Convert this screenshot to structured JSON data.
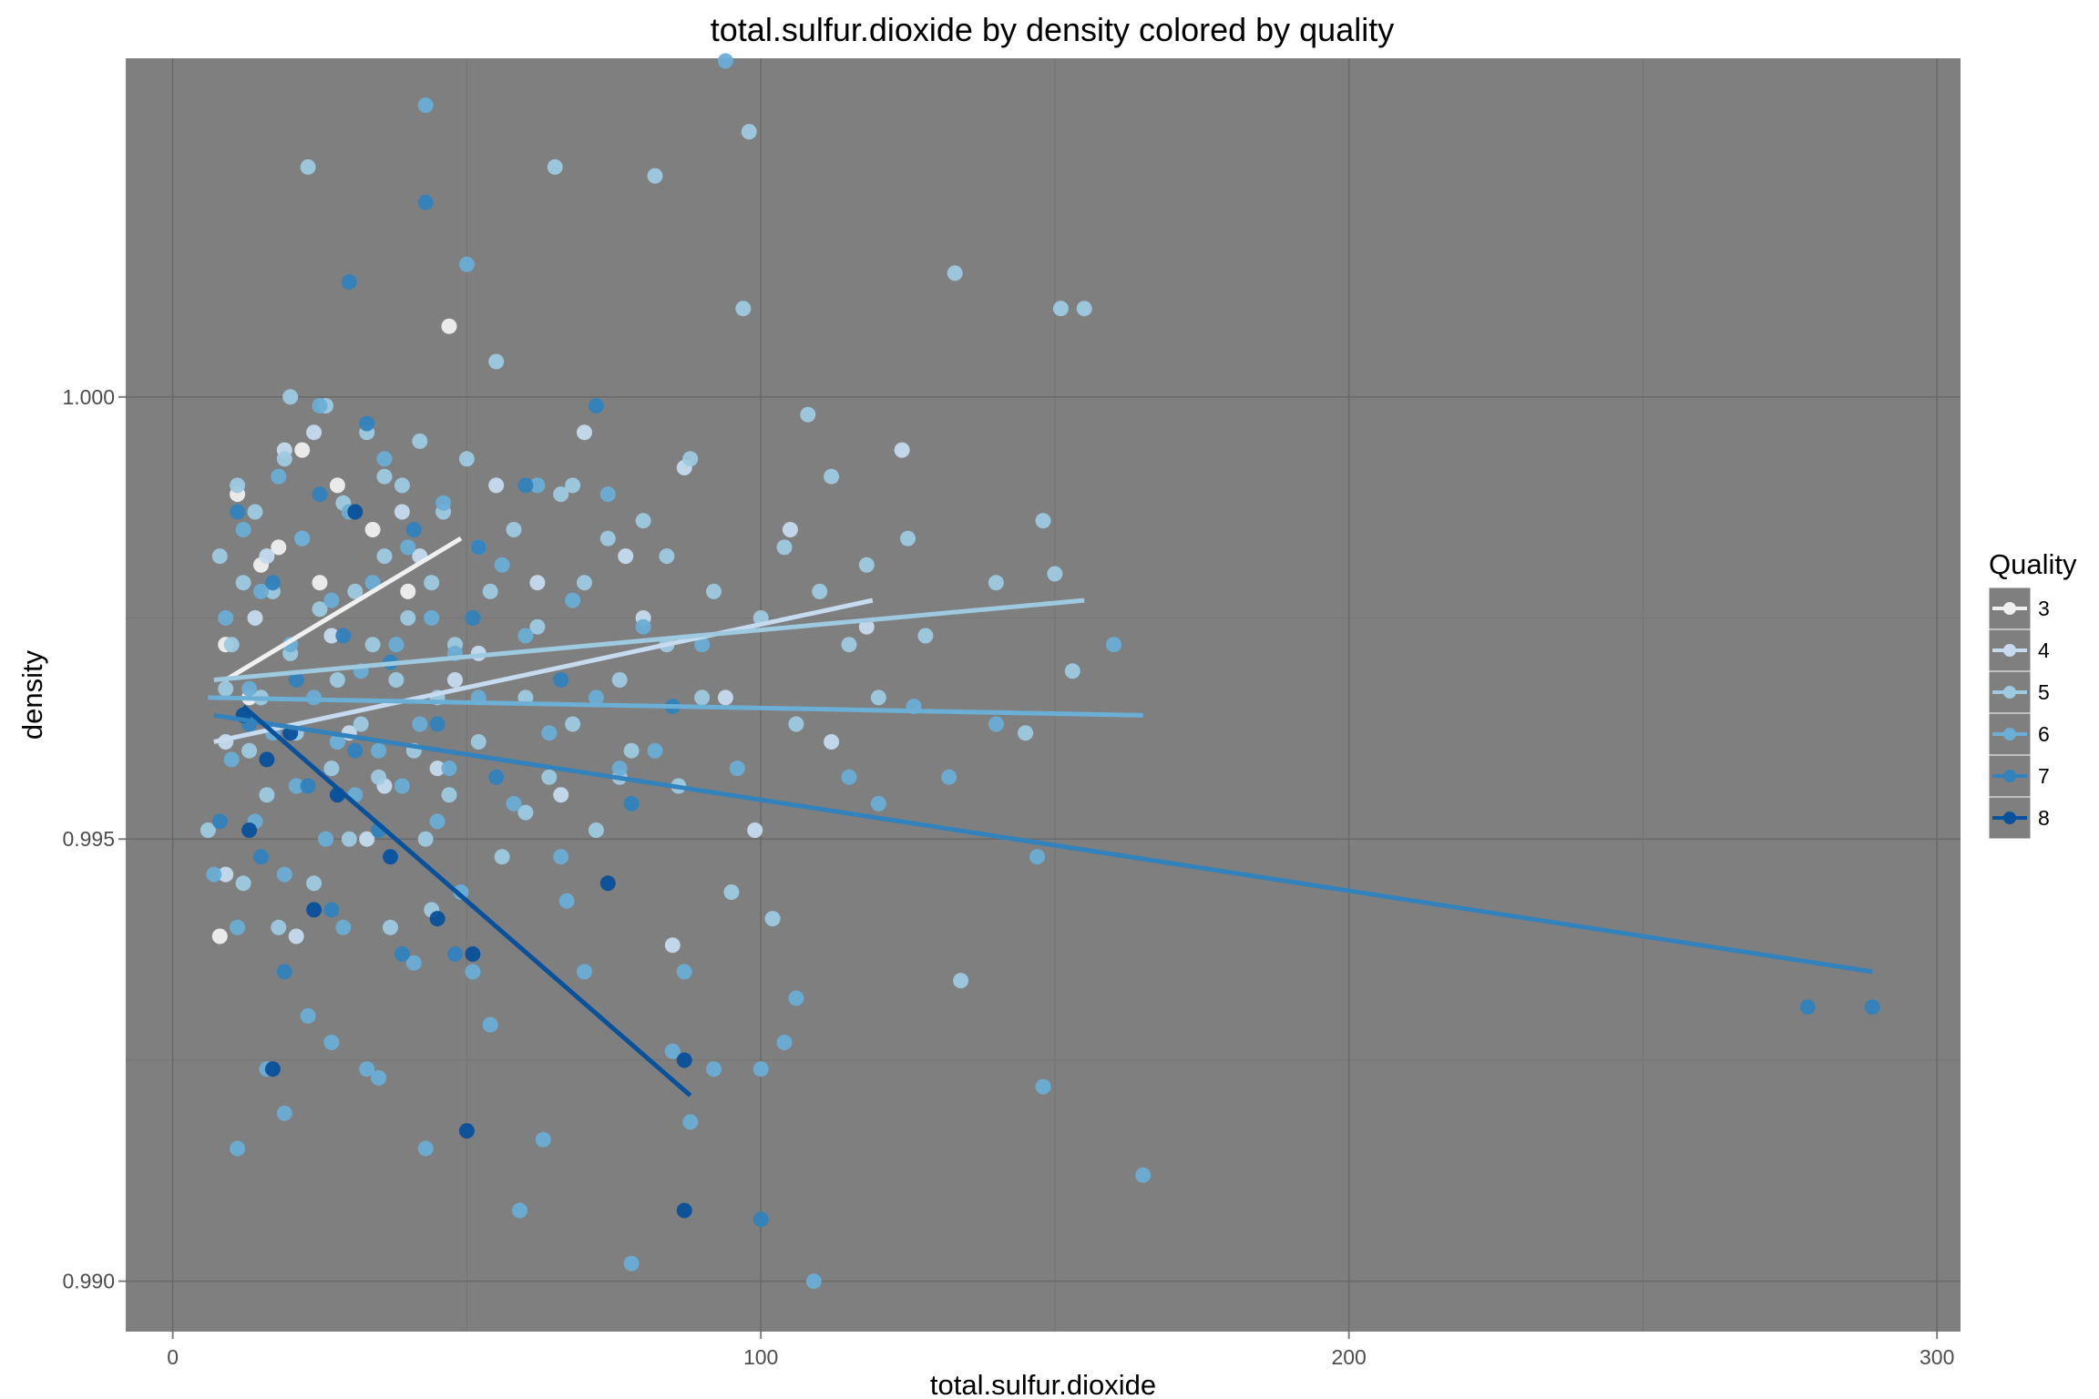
{
  "chart_data": {
    "type": "scatter",
    "title": "total.sulfur.dioxide by density colored by quality",
    "xlabel": "total.sulfur.dioxide",
    "ylabel": "density",
    "xlim": [
      -8,
      304
    ],
    "ylim": [
      0.98943,
      1.00383
    ],
    "x_ticks": [
      0,
      100,
      200,
      300
    ],
    "x_tick_labels": [
      "0",
      "100",
      "200",
      "300"
    ],
    "y_ticks": [
      0.99,
      0.995,
      1.0
    ],
    "y_tick_labels": [
      "0.990",
      "0.995",
      "1.000"
    ],
    "grid": true,
    "legend": {
      "title": "Quality",
      "position": "right"
    },
    "background": "#7f7f7f",
    "series": [
      {
        "name": "3",
        "color": "#f0f0f0",
        "points": [
          [
            11,
            0.9989
          ],
          [
            15,
            0.9981
          ],
          [
            18,
            0.9983
          ],
          [
            22,
            0.9994
          ],
          [
            28,
            0.999
          ],
          [
            34,
            0.9985
          ],
          [
            47,
            1.0008
          ],
          [
            9,
            0.9972
          ],
          [
            13,
            0.9966
          ],
          [
            8,
            0.9939
          ],
          [
            25,
            0.9979
          ],
          [
            40,
            0.9978
          ]
        ],
        "fit": [
          [
            9,
            0.9968
          ],
          [
            49,
            0.9984
          ]
        ]
      },
      {
        "name": "4",
        "color": "#c6dbef",
        "points": [
          [
            9,
            0.9946
          ],
          [
            14,
            0.9975
          ],
          [
            19,
            0.9994
          ],
          [
            24,
            0.9996
          ],
          [
            30,
            0.9962
          ],
          [
            36,
            0.9956
          ],
          [
            42,
            0.9982
          ],
          [
            48,
            0.9968
          ],
          [
            55,
            0.999
          ],
          [
            62,
            0.9979
          ],
          [
            70,
            0.9996
          ],
          [
            77,
            0.9982
          ],
          [
            85,
            0.9938
          ],
          [
            94,
            0.9966
          ],
          [
            105,
            0.9985
          ],
          [
            112,
            0.9961
          ],
          [
            124,
            0.9994
          ],
          [
            9,
            0.9961
          ],
          [
            16,
            0.9982
          ],
          [
            21,
            0.9939
          ],
          [
            27,
            0.9973
          ],
          [
            33,
            0.995
          ],
          [
            39,
            0.9987
          ],
          [
            45,
            0.9958
          ],
          [
            52,
            0.9971
          ],
          [
            66,
            0.9955
          ],
          [
            80,
            0.9975
          ],
          [
            87,
            0.9992
          ],
          [
            99,
            0.9951
          ],
          [
            118,
            0.9974
          ]
        ],
        "fit": [
          [
            7,
            0.9961
          ],
          [
            119,
            0.9977
          ]
        ]
      },
      {
        "name": "5",
        "color": "#9ecae1",
        "points": [
          [
            6,
            0.9951
          ],
          [
            8,
            0.9982
          ],
          [
            9,
            0.9967
          ],
          [
            10,
            0.9972
          ],
          [
            11,
            0.999
          ],
          [
            12,
            0.9945
          ],
          [
            13,
            0.996
          ],
          [
            14,
            0.9987
          ],
          [
            15,
            0.9966
          ],
          [
            16,
            0.9955
          ],
          [
            17,
            0.9978
          ],
          [
            18,
            0.994
          ],
          [
            19,
            0.9993
          ],
          [
            20,
            0.9971
          ],
          [
            21,
            0.9962
          ],
          [
            22,
            0.9984
          ],
          [
            23,
            1.0026
          ],
          [
            24,
            0.9945
          ],
          [
            25,
            0.9976
          ],
          [
            26,
            0.9999
          ],
          [
            27,
            0.9958
          ],
          [
            28,
            0.9968
          ],
          [
            29,
            0.9988
          ],
          [
            30,
            0.995
          ],
          [
            31,
            0.9978
          ],
          [
            32,
            0.9963
          ],
          [
            33,
            0.9996
          ],
          [
            34,
            0.9972
          ],
          [
            35,
            0.9957
          ],
          [
            36,
            0.9982
          ],
          [
            37,
            0.994
          ],
          [
            38,
            0.9968
          ],
          [
            39,
            0.999
          ],
          [
            40,
            0.9975
          ],
          [
            41,
            0.996
          ],
          [
            42,
            0.9995
          ],
          [
            43,
            0.995
          ],
          [
            44,
            0.9979
          ],
          [
            45,
            0.9966
          ],
          [
            46,
            0.9987
          ],
          [
            47,
            0.9955
          ],
          [
            48,
            0.9972
          ],
          [
            50,
            0.9993
          ],
          [
            52,
            0.9961
          ],
          [
            54,
            0.9978
          ],
          [
            55,
            1.0004
          ],
          [
            56,
            0.9948
          ],
          [
            58,
            0.9985
          ],
          [
            60,
            0.9966
          ],
          [
            62,
            0.9974
          ],
          [
            64,
            0.9957
          ],
          [
            65,
            1.0026
          ],
          [
            66,
            0.9989
          ],
          [
            68,
            0.9963
          ],
          [
            70,
            0.9979
          ],
          [
            72,
            0.9951
          ],
          [
            74,
            0.9984
          ],
          [
            76,
            0.9968
          ],
          [
            78,
            0.996
          ],
          [
            80,
            0.9986
          ],
          [
            82,
            1.0025
          ],
          [
            84,
            0.9972
          ],
          [
            86,
            0.9956
          ],
          [
            88,
            0.9993
          ],
          [
            90,
            0.9966
          ],
          [
            92,
            0.9978
          ],
          [
            95,
            0.9944
          ],
          [
            97,
            1.001
          ],
          [
            98,
            1.003
          ],
          [
            100,
            0.9975
          ],
          [
            102,
            0.9941
          ],
          [
            104,
            0.9983
          ],
          [
            106,
            0.9963
          ],
          [
            108,
            0.9998
          ],
          [
            110,
            0.9978
          ],
          [
            112,
            0.9991
          ],
          [
            115,
            0.9972
          ],
          [
            118,
            0.9981
          ],
          [
            120,
            0.9966
          ],
          [
            125,
            0.9984
          ],
          [
            128,
            0.9973
          ],
          [
            133,
            1.0014
          ],
          [
            134,
            0.9934
          ],
          [
            140,
            0.9979
          ],
          [
            145,
            0.9962
          ],
          [
            148,
            0.9986
          ],
          [
            150,
            0.998
          ],
          [
            151,
            1.001
          ],
          [
            153,
            0.9969
          ],
          [
            155,
            1.001
          ],
          [
            12,
            0.9979
          ],
          [
            20,
            1.0
          ],
          [
            28,
            0.9961
          ],
          [
            36,
            0.9991
          ],
          [
            44,
            0.9942
          ],
          [
            52,
            0.9983
          ],
          [
            60,
            0.9953
          ],
          [
            68,
            0.999
          ],
          [
            76,
            0.9957
          ],
          [
            84,
            0.9982
          ]
        ],
        "fit": [
          [
            7,
            0.9968
          ],
          [
            155,
            0.9977
          ]
        ]
      },
      {
        "name": "6",
        "color": "#6baed6",
        "points": [
          [
            7,
            0.9946
          ],
          [
            9,
            0.9975
          ],
          [
            10,
            0.9959
          ],
          [
            11,
            0.994
          ],
          [
            12,
            0.9985
          ],
          [
            13,
            0.9967
          ],
          [
            14,
            0.9952
          ],
          [
            15,
            0.9978
          ],
          [
            16,
            0.9924
          ],
          [
            17,
            0.9962
          ],
          [
            18,
            0.9991
          ],
          [
            19,
            0.9946
          ],
          [
            20,
            0.9972
          ],
          [
            21,
            0.9956
          ],
          [
            22,
            0.9984
          ],
          [
            23,
            0.993
          ],
          [
            24,
            0.9966
          ],
          [
            25,
            0.9999
          ],
          [
            26,
            0.995
          ],
          [
            27,
            0.9977
          ],
          [
            28,
            0.9961
          ],
          [
            29,
            0.994
          ],
          [
            30,
            0.9987
          ],
          [
            31,
            0.9955
          ],
          [
            32,
            0.9969
          ],
          [
            33,
            0.9924
          ],
          [
            34,
            0.9979
          ],
          [
            35,
            0.996
          ],
          [
            36,
            0.9993
          ],
          [
            37,
            0.9948
          ],
          [
            38,
            0.9972
          ],
          [
            39,
            0.9956
          ],
          [
            40,
            0.9983
          ],
          [
            41,
            0.9936
          ],
          [
            42,
            0.9963
          ],
          [
            43,
            1.0033
          ],
          [
            44,
            0.9975
          ],
          [
            45,
            0.9952
          ],
          [
            46,
            0.9988
          ],
          [
            47,
            0.9958
          ],
          [
            48,
            0.9971
          ],
          [
            49,
            0.9944
          ],
          [
            50,
            1.0015
          ],
          [
            52,
            0.9966
          ],
          [
            54,
            0.9929
          ],
          [
            56,
            0.9981
          ],
          [
            58,
            0.9954
          ],
          [
            60,
            0.9973
          ],
          [
            62,
            0.999
          ],
          [
            63,
            0.9916
          ],
          [
            64,
            0.9962
          ],
          [
            66,
            0.9948
          ],
          [
            68,
            0.9977
          ],
          [
            70,
            0.9935
          ],
          [
            72,
            0.9966
          ],
          [
            74,
            0.9989
          ],
          [
            76,
            0.9958
          ],
          [
            78,
            0.9902
          ],
          [
            80,
            0.9974
          ],
          [
            82,
            0.996
          ],
          [
            85,
            0.9926
          ],
          [
            87,
            0.9935
          ],
          [
            88,
            0.9918
          ],
          [
            90,
            0.9972
          ],
          [
            92,
            0.9924
          ],
          [
            94,
            1.0038
          ],
          [
            96,
            0.9958
          ],
          [
            100,
            0.9924
          ],
          [
            104,
            0.9927
          ],
          [
            106,
            0.9932
          ],
          [
            109,
            0.99
          ],
          [
            115,
            0.9957
          ],
          [
            120,
            0.9954
          ],
          [
            126,
            0.9965
          ],
          [
            132,
            0.9957
          ],
          [
            140,
            0.9963
          ],
          [
            147,
            0.9948
          ],
          [
            148,
            0.9922
          ],
          [
            160,
            0.9972
          ],
          [
            165,
            0.9912
          ],
          [
            11,
            0.9915
          ],
          [
            19,
            0.9919
          ],
          [
            27,
            0.9927
          ],
          [
            35,
            0.9923
          ],
          [
            43,
            0.9915
          ],
          [
            51,
            0.9935
          ],
          [
            59,
            0.9908
          ],
          [
            67,
            0.9943
          ]
        ],
        "fit": [
          [
            6,
            0.9966
          ],
          [
            165,
            0.9964
          ]
        ]
      },
      {
        "name": "7",
        "color": "#3182bd",
        "points": [
          [
            8,
            0.9952
          ],
          [
            11,
            0.9987
          ],
          [
            13,
            0.9963
          ],
          [
            15,
            0.9948
          ],
          [
            17,
            0.9979
          ],
          [
            19,
            0.9935
          ],
          [
            21,
            0.9968
          ],
          [
            23,
            0.9956
          ],
          [
            25,
            0.9989
          ],
          [
            27,
            0.9942
          ],
          [
            29,
            0.9973
          ],
          [
            31,
            0.996
          ],
          [
            33,
            0.9997
          ],
          [
            35,
            0.9951
          ],
          [
            37,
            0.997
          ],
          [
            39,
            0.9937
          ],
          [
            41,
            0.9985
          ],
          [
            43,
            1.0022
          ],
          [
            45,
            0.9963
          ],
          [
            48,
            0.9937
          ],
          [
            51,
            0.9975
          ],
          [
            55,
            0.9957
          ],
          [
            60,
            0.999
          ],
          [
            66,
            0.9968
          ],
          [
            72,
            0.9999
          ],
          [
            78,
            0.9954
          ],
          [
            85,
            0.9965
          ],
          [
            100,
            0.9907
          ],
          [
            30,
            1.0013
          ],
          [
            52,
            0.9983
          ],
          [
            278,
            0.9931
          ],
          [
            289,
            0.9931
          ]
        ],
        "fit": [
          [
            7,
            0.9964
          ],
          [
            289,
            0.9935
          ]
        ]
      },
      {
        "name": "8",
        "color": "#08519c",
        "points": [
          [
            12,
            0.9964
          ],
          [
            16,
            0.9959
          ],
          [
            17,
            0.9924
          ],
          [
            24,
            0.9942
          ],
          [
            28,
            0.9955
          ],
          [
            31,
            0.9987
          ],
          [
            37,
            0.9948
          ],
          [
            45,
            0.9941
          ],
          [
            50,
            0.9917
          ],
          [
            51,
            0.9937
          ],
          [
            74,
            0.9945
          ],
          [
            87,
            0.9925
          ],
          [
            87,
            0.9908
          ],
          [
            13,
            0.9951
          ],
          [
            20,
            0.9962
          ]
        ],
        "fit": [
          [
            12,
            0.9965
          ],
          [
            88,
            0.9921
          ]
        ]
      }
    ]
  }
}
